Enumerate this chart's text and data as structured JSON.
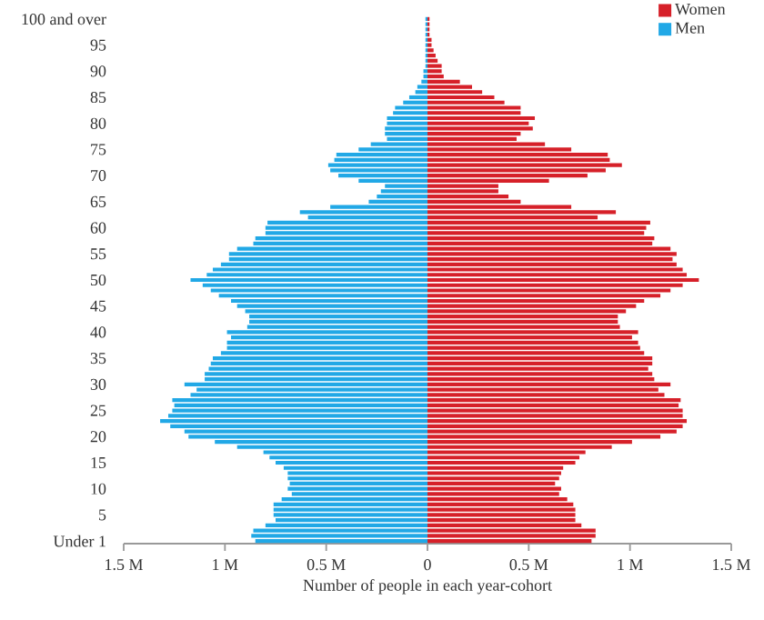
{
  "chart_data": {
    "type": "bar",
    "orientation": "horizontal",
    "xlabel": "Number of people in each year-cohort",
    "categories": [
      "100 and over",
      null,
      null,
      null,
      null,
      "95",
      null,
      null,
      null,
      null,
      "90",
      null,
      null,
      null,
      null,
      "85",
      null,
      null,
      null,
      null,
      "80",
      null,
      null,
      null,
      null,
      "75",
      null,
      null,
      null,
      null,
      "70",
      null,
      null,
      null,
      null,
      "65",
      null,
      null,
      null,
      null,
      "60",
      null,
      null,
      null,
      null,
      "55",
      null,
      null,
      null,
      null,
      "50",
      null,
      null,
      null,
      null,
      "45",
      null,
      null,
      null,
      null,
      "40",
      null,
      null,
      null,
      null,
      "35",
      null,
      null,
      null,
      null,
      "30",
      null,
      null,
      null,
      null,
      "25",
      null,
      null,
      null,
      null,
      "20",
      null,
      null,
      null,
      null,
      "15",
      null,
      null,
      null,
      null,
      "10",
      null,
      null,
      null,
      null,
      "5",
      null,
      null,
      null,
      null,
      "Under 1"
    ],
    "series": [
      {
        "name": "Women",
        "color": "#d62029",
        "values": [
          0.01,
          0.01,
          0.01,
          0.01,
          0.02,
          0.02,
          0.03,
          0.04,
          0.05,
          0.07,
          0.07,
          0.08,
          0.16,
          0.22,
          0.27,
          0.33,
          0.38,
          0.46,
          0.46,
          0.53,
          0.5,
          0.52,
          0.46,
          0.44,
          0.58,
          0.71,
          0.89,
          0.9,
          0.96,
          0.88,
          0.79,
          0.6,
          0.35,
          0.35,
          0.4,
          0.46,
          0.71,
          0.93,
          0.84,
          1.1,
          1.08,
          1.07,
          1.12,
          1.11,
          1.2,
          1.23,
          1.21,
          1.23,
          1.26,
          1.28,
          1.34,
          1.26,
          1.2,
          1.15,
          1.07,
          1.03,
          0.98,
          0.94,
          0.94,
          0.95,
          1.04,
          1.01,
          1.04,
          1.05,
          1.07,
          1.11,
          1.11,
          1.09,
          1.11,
          1.12,
          1.2,
          1.14,
          1.17,
          1.25,
          1.24,
          1.26,
          1.26,
          1.28,
          1.26,
          1.23,
          1.15,
          1.01,
          0.91,
          0.78,
          0.75,
          0.73,
          0.67,
          0.66,
          0.65,
          0.63,
          0.66,
          0.65,
          0.69,
          0.72,
          0.73,
          0.73,
          0.73,
          0.76,
          0.83,
          0.83,
          0.81
        ]
      },
      {
        "name": "Men",
        "color": "#21a8e6",
        "values": [
          -0.01,
          -0.01,
          -0.01,
          -0.01,
          -0.01,
          -0.01,
          -0.01,
          -0.01,
          -0.01,
          -0.01,
          -0.02,
          -0.02,
          -0.03,
          -0.05,
          -0.06,
          -0.09,
          -0.12,
          -0.16,
          -0.17,
          -0.2,
          -0.2,
          -0.21,
          -0.21,
          -0.2,
          -0.28,
          -0.34,
          -0.45,
          -0.46,
          -0.49,
          -0.48,
          -0.44,
          -0.34,
          -0.21,
          -0.23,
          -0.25,
          -0.29,
          -0.48,
          -0.63,
          -0.59,
          -0.79,
          -0.8,
          -0.8,
          -0.85,
          -0.86,
          -0.94,
          -0.98,
          -0.98,
          -1.02,
          -1.06,
          -1.09,
          -1.17,
          -1.11,
          -1.07,
          -1.03,
          -0.97,
          -0.94,
          -0.9,
          -0.88,
          -0.88,
          -0.89,
          -0.99,
          -0.97,
          -0.99,
          -0.99,
          -1.02,
          -1.06,
          -1.07,
          -1.08,
          -1.1,
          -1.1,
          -1.2,
          -1.14,
          -1.17,
          -1.26,
          -1.25,
          -1.26,
          -1.28,
          -1.32,
          -1.27,
          -1.2,
          -1.18,
          -1.05,
          -0.94,
          -0.81,
          -0.78,
          -0.75,
          -0.71,
          -0.69,
          -0.69,
          -0.68,
          -0.69,
          -0.67,
          -0.72,
          -0.76,
          -0.76,
          -0.76,
          -0.75,
          -0.8,
          -0.86,
          -0.87,
          -0.85
        ]
      }
    ],
    "xlim": [
      -1.5,
      1.5
    ],
    "xticks": [
      {
        "value": -1.5,
        "label": "1.5 M"
      },
      {
        "value": -1,
        "label": "1 M"
      },
      {
        "value": -0.5,
        "label": "0.5 M"
      },
      0,
      {
        "value": 0.5,
        "label": "0.5 M"
      },
      {
        "value": 1,
        "label": "1 M"
      },
      {
        "value": 1.5,
        "label": "1.5 M"
      }
    ],
    "legend": "top right",
    "stacked": true
  }
}
